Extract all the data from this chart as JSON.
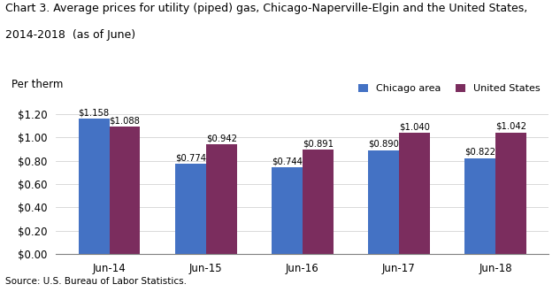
{
  "title_line1": "Chart 3. Average prices for utility (piped) gas, Chicago-Naperville-Elgin and the United States,",
  "title_line2": "2014-2018  (as of June)",
  "ylabel": "Per therm",
  "source": "Source: U.S. Bureau of Labor Statistics.",
  "categories": [
    "Jun-14",
    "Jun-15",
    "Jun-16",
    "Jun-17",
    "Jun-18"
  ],
  "chicago": [
    1.158,
    0.774,
    0.744,
    0.89,
    0.822
  ],
  "us": [
    1.088,
    0.942,
    0.891,
    1.04,
    1.042
  ],
  "chicago_color": "#4472C4",
  "us_color": "#7B2D5E",
  "chicago_label": "Chicago area",
  "us_label": "United States",
  "ylim": [
    0,
    1.3
  ],
  "yticks": [
    0.0,
    0.2,
    0.4,
    0.6,
    0.8,
    1.0,
    1.2
  ],
  "bar_width": 0.32
}
